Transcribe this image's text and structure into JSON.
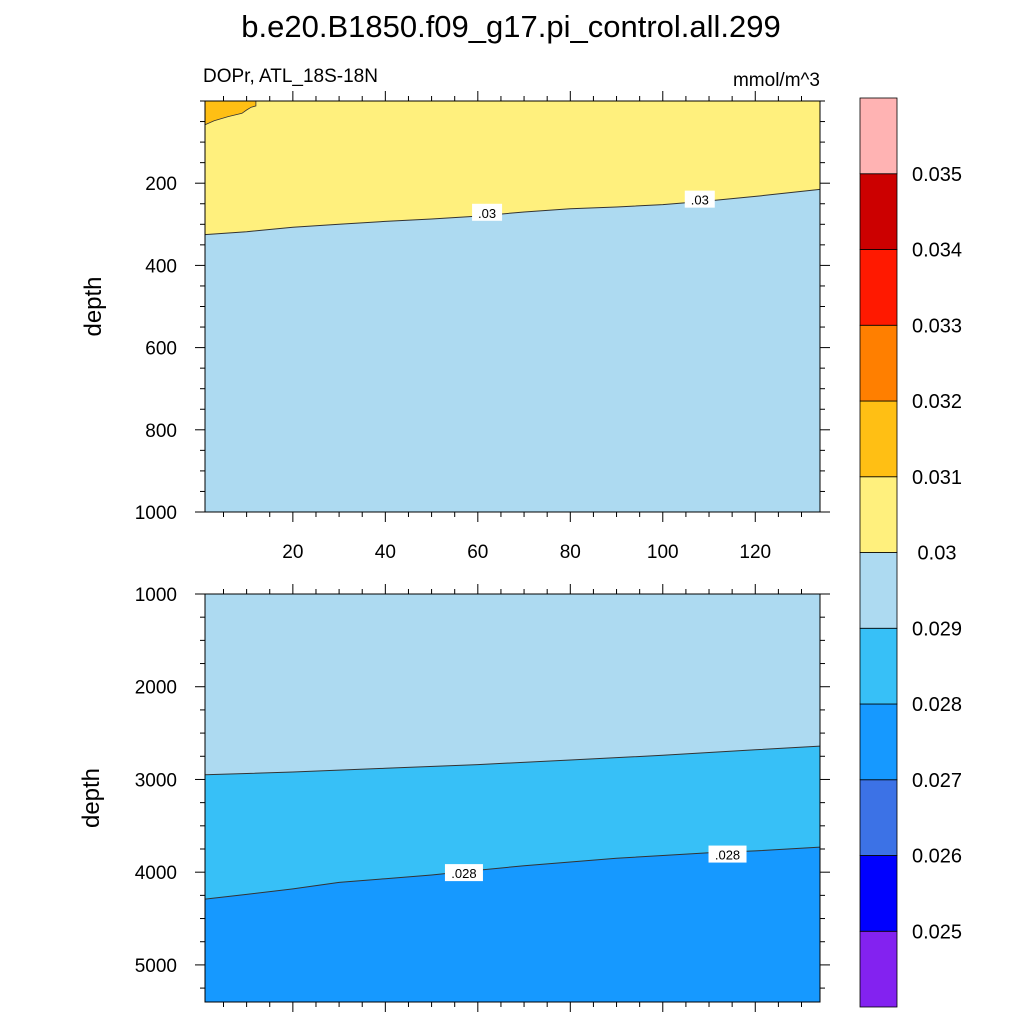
{
  "chart_data": {
    "type": "contour",
    "title": "b.e20.B1850.f09_g17.pi_control.all.299",
    "left_subtitle": "DOPr, ATL_18S-18N",
    "right_subtitle": "mmol/m^3",
    "colors": {
      "lt_0.025": "#8322F0",
      "0.025_0.026": "#0000FF",
      "0.026_0.027": "#3C72E6",
      "0.027_0.028": "#1699FF",
      "0.028_0.029": "#37C0F7",
      "0.029_0.030": "#ADDAF1",
      "0.030_0.031": "#FFF07D",
      "0.031_0.032": "#FFBF14",
      "0.032_0.033": "#FF7F00",
      "0.033_0.034": "#FF1900",
      "0.034_0.035": "#CC0000",
      "gt_0.035": "#FFB3B3"
    },
    "colorbar": {
      "levels": [
        "0.025",
        "0.026",
        "0.027",
        "0.028",
        "0.029",
        "0.03",
        "0.031",
        "0.032",
        "0.033",
        "0.034",
        "0.035"
      ],
      "colors": [
        "#8322F0",
        "#0000FF",
        "#3C72E6",
        "#1699FF",
        "#37C0F7",
        "#ADDAF1",
        "#FFF07D",
        "#FFBF14",
        "#FF7F00",
        "#FF1900",
        "#CC0000",
        "#FFB3B3"
      ]
    },
    "panels": [
      {
        "name": "upper",
        "ylabel": "depth",
        "x_range": [
          1,
          134
        ],
        "y_range": [
          0,
          1000
        ],
        "y_ticks": [
          "200",
          "400",
          "600",
          "800",
          "1000"
        ],
        "y_tick_values": [
          200,
          400,
          600,
          800,
          1000
        ],
        "x_ticks": [
          "20",
          "40",
          "60",
          "80",
          "100",
          "120"
        ],
        "x_tick_values": [
          20,
          40,
          60,
          80,
          100,
          120
        ],
        "contour_0_030": {
          "x": [
            1,
            10,
            20,
            30,
            40,
            50,
            60,
            70,
            80,
            90,
            100,
            110,
            120,
            134
          ],
          "depth": [
            325,
            318,
            307,
            300,
            293,
            287,
            280,
            270,
            262,
            258,
            252,
            243,
            232,
            215
          ]
        },
        "region_0_031_x": [
          1,
          3,
          6,
          9,
          10,
          11,
          12
        ],
        "region_0_031_depth": [
          58,
          48,
          38,
          30,
          22,
          15,
          12
        ],
        "contour_labels": [
          {
            "text": ".03",
            "x": 62,
            "depth": 272
          },
          {
            "text": ".03",
            "x": 108,
            "depth": 240
          }
        ]
      },
      {
        "name": "lower",
        "ylabel": "depth",
        "x_range": [
          1,
          134
        ],
        "y_range": [
          1000,
          5400
        ],
        "y_ticks": [
          "1000",
          "2000",
          "3000",
          "4000",
          "5000"
        ],
        "y_tick_values": [
          1000,
          2000,
          3000,
          4000,
          5000
        ],
        "x_tick_values": [
          20,
          40,
          60,
          80,
          100,
          120
        ],
        "contour_0_029": {
          "x": [
            1,
            20,
            40,
            60,
            80,
            100,
            120,
            134
          ],
          "depth": [
            2950,
            2920,
            2880,
            2840,
            2790,
            2740,
            2680,
            2640
          ]
        },
        "contour_0_028": {
          "x": [
            1,
            10,
            20,
            30,
            40,
            50,
            60,
            70,
            80,
            90,
            100,
            110,
            120,
            134
          ],
          "depth": [
            4290,
            4240,
            4180,
            4110,
            4070,
            4030,
            3980,
            3930,
            3890,
            3850,
            3820,
            3790,
            3770,
            3730
          ]
        },
        "contour_labels": [
          {
            "text": ".028",
            "x": 57,
            "depth": 4010
          },
          {
            "text": ".028",
            "x": 114,
            "depth": 3810
          }
        ]
      }
    ]
  }
}
